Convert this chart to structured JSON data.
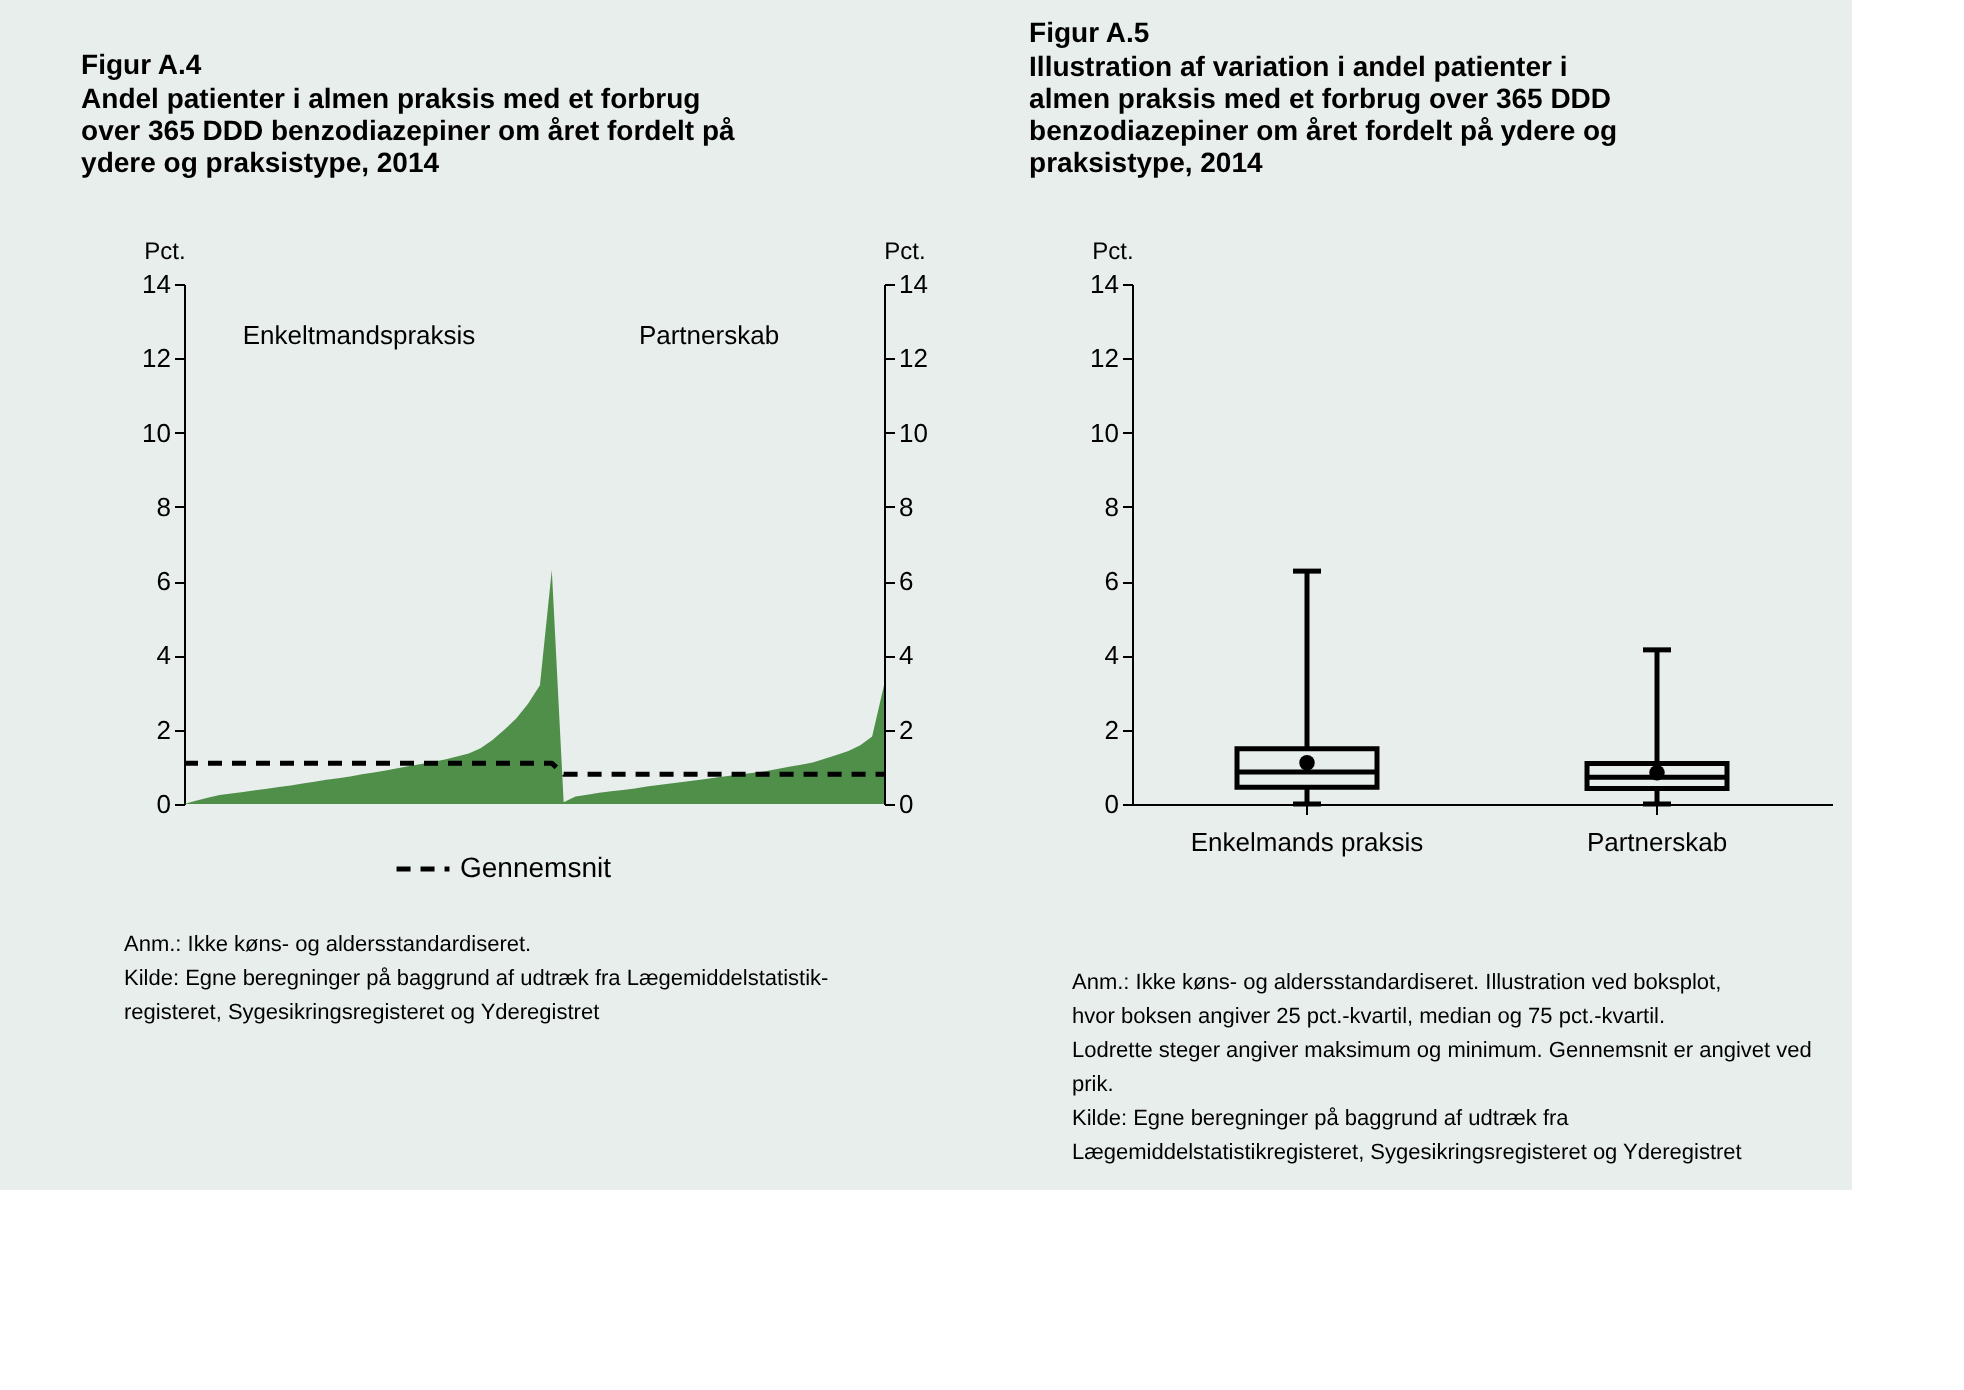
{
  "chart_data": [
    {
      "type": "area",
      "title": "Figur A.4",
      "subtitle": "Andel patienter i almen praksis med et forbrug over 365 DDD benzodiazepiner om året fordelt på ydere og praksistype, 2014",
      "ylabel": "Pct.",
      "y2label": "Pct.",
      "ylim": [
        0,
        14
      ],
      "yticks": [
        0,
        2,
        4,
        6,
        8,
        10,
        12,
        14
      ],
      "y2lim": [
        0,
        14
      ],
      "y2ticks": [
        0,
        2,
        4,
        6,
        8,
        10,
        12,
        14
      ],
      "grid": false,
      "legend": "bottom",
      "categories": [
        null,
        null,
        null,
        null,
        null,
        null,
        null,
        null,
        null,
        null,
        null,
        null,
        null,
        null,
        null,
        null,
        null,
        null,
        null,
        null,
        null,
        null,
        null,
        null,
        null,
        null,
        null,
        null,
        null,
        null,
        null,
        null,
        null,
        null,
        null,
        null,
        null,
        null,
        null,
        null,
        null,
        null,
        null,
        null,
        null,
        null,
        null,
        null,
        null,
        null,
        null,
        null,
        null,
        null,
        null,
        null,
        null,
        null,
        null,
        null
      ],
      "series": [
        {
          "type": "area",
          "color": "#4f8f4a",
          "values": [
            0,
            0.09,
            0.17,
            0.24,
            0.28,
            0.32,
            0.37,
            0.41,
            0.46,
            0.5,
            0.55,
            0.6,
            0.65,
            0.69,
            0.74,
            0.8,
            0.85,
            0.9,
            0.96,
            1.02,
            1.08,
            1.14,
            1.2,
            1.28,
            1.36,
            1.5,
            1.72,
            2.0,
            2.3,
            2.7,
            3.2,
            6.3,
            0.05,
            0.2,
            0.25,
            0.3,
            0.34,
            0.38,
            0.42,
            0.47,
            0.51,
            0.55,
            0.59,
            0.63,
            0.67,
            0.72,
            0.76,
            0.8,
            0.84,
            0.88,
            0.94,
            1.0,
            1.06,
            1.12,
            1.22,
            1.32,
            1.43,
            1.58,
            1.82,
            3.2
          ]
        },
        {
          "type": "line",
          "name": "Gennemsnit",
          "color": "#000000",
          "line_style": "dashed",
          "values": [
            1.1,
            1.1,
            1.1,
            1.1,
            1.1,
            1.1,
            1.1,
            1.1,
            1.1,
            1.1,
            1.1,
            1.1,
            1.1,
            1.1,
            1.1,
            1.1,
            1.1,
            1.1,
            1.1,
            1.1,
            1.1,
            1.1,
            1.1,
            1.1,
            1.1,
            1.1,
            1.1,
            1.1,
            1.1,
            1.1,
            1.1,
            1.1,
            0.8,
            0.8,
            0.8,
            0.8,
            0.8,
            0.8,
            0.8,
            0.8,
            0.8,
            0.8,
            0.8,
            0.8,
            0.8,
            0.8,
            0.8,
            0.8,
            0.8,
            0.8,
            0.8,
            0.8,
            0.8,
            0.8,
            0.8,
            0.8,
            0.8,
            0.8,
            0.8,
            0.8
          ]
        }
      ],
      "annotations": [
        "Enkeltmandspraksis",
        "Partnerskab",
        "Anm.: Ikke køns- og aldersstandardiseret.",
        "Kilde: Egne beregninger på baggrund af udtræk fra Lægemiddelstatistik-registeret, Sygesikringsregisteret og Yderegistret"
      ]
    },
    {
      "type": "box",
      "title": "Figur A.5",
      "subtitle": "Illustration af variation i andel patienter i almen praksis med et forbrug over 365 DDD benzodiazepiner om året fordelt på ydere og praksistype, 2014",
      "ylabel": "Pct.",
      "ylim": [
        0,
        14
      ],
      "yticks": [
        0,
        2,
        4,
        6,
        8,
        10,
        12,
        14
      ],
      "grid": false,
      "categories": [
        "Enkelmands praksis",
        "Partnerskab"
      ],
      "boxes": [
        {
          "low": 0,
          "q1": 0.45,
          "median": 0.86,
          "q3": 1.49,
          "high": 6.27,
          "mean": 1.11
        },
        {
          "low": 0,
          "q1": 0.42,
          "median": 0.72,
          "q3": 1.09,
          "high": 4.15,
          "mean": 0.84
        }
      ],
      "annotations": [
        "Anm.: Ikke køns- og aldersstandardiseret. Illustration ved boksplot, hvor boksen angiver 25 pct.-kvartil, median og 75 pct.-kvartil. Lodrette steger angiver maksimum og minimum. Gennemsnit er angivet ved prik.",
        "Kilde: Egne beregninger på baggrund af udtræk fra Lægemiddelstatistikregisteret, Sygesikringsregisteret og Yderegistret"
      ]
    }
  ]
}
